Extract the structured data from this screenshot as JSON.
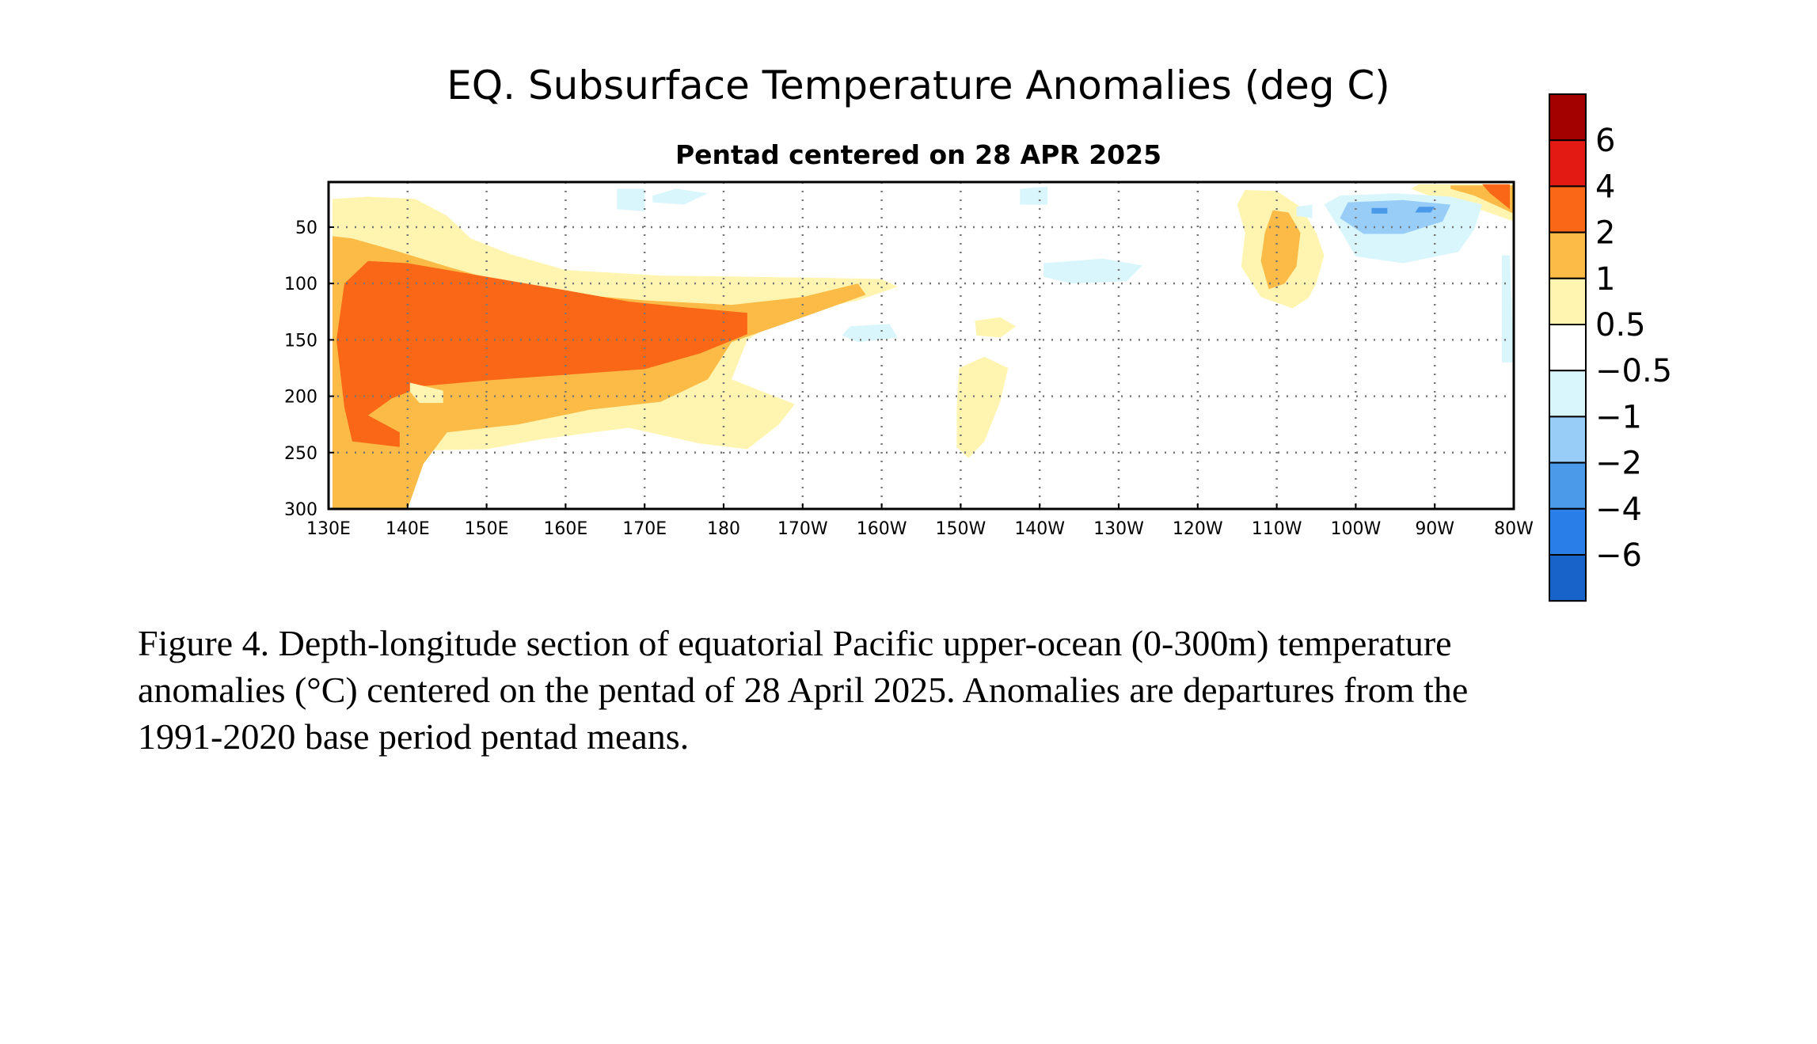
{
  "colors": {
    "levels": [
      "#1863c9",
      "#2a7ee8",
      "#4a9ae9",
      "#98cdf7",
      "#d8f6fb",
      "#ffffff",
      "#fff5b0",
      "#fcbb46",
      "#fa6716",
      "#e31a14",
      "#a30000"
    ]
  },
  "chart_data": {
    "type": "heatmap",
    "title": "EQ. Subsurface Temperature Anomalies (deg C)",
    "subtitle": "Pentad centered on 28 APR 2025",
    "xlabel": "",
    "ylabel": "",
    "xlim": [
      130,
      280
    ],
    "ylim": [
      300,
      10
    ],
    "x_ticks": [
      {
        "value": 130,
        "label": "130E"
      },
      {
        "value": 140,
        "label": "140E"
      },
      {
        "value": 150,
        "label": "150E"
      },
      {
        "value": 160,
        "label": "160E"
      },
      {
        "value": 170,
        "label": "170E"
      },
      {
        "value": 180,
        "label": "180"
      },
      {
        "value": 190,
        "label": "170W"
      },
      {
        "value": 200,
        "label": "160W"
      },
      {
        "value": 210,
        "label": "150W"
      },
      {
        "value": 220,
        "label": "140W"
      },
      {
        "value": 230,
        "label": "130W"
      },
      {
        "value": 240,
        "label": "120W"
      },
      {
        "value": 250,
        "label": "110W"
      },
      {
        "value": 260,
        "label": "100W"
      },
      {
        "value": 270,
        "label": "90W"
      },
      {
        "value": 280,
        "label": "80W"
      }
    ],
    "y_ticks": [
      {
        "value": 50,
        "label": "50"
      },
      {
        "value": 100,
        "label": "100"
      },
      {
        "value": 150,
        "label": "150"
      },
      {
        "value": 200,
        "label": "200"
      },
      {
        "value": 250,
        "label": "250"
      },
      {
        "value": 300,
        "label": "300"
      }
    ],
    "grid": true,
    "colorbar": {
      "labels": [
        "6",
        "4",
        "2",
        "1",
        "0.5",
        "−0.5",
        "−1",
        "−2",
        "−4",
        "−6"
      ],
      "levels": [
        -6,
        -4,
        -2,
        -1,
        -0.5,
        0.5,
        1,
        2,
        4,
        6
      ]
    },
    "anomaly_regions": [
      {
        "level": 0.5,
        "points": [
          [
            130.5,
            25
          ],
          [
            135,
            23
          ],
          [
            141,
            25
          ],
          [
            145,
            40
          ],
          [
            148,
            60
          ],
          [
            153,
            74
          ],
          [
            160,
            88
          ],
          [
            172,
            93
          ],
          [
            183,
            94
          ],
          [
            193,
            95
          ],
          [
            200,
            96
          ],
          [
            202,
            103
          ],
          [
            197,
            115
          ],
          [
            188,
            128
          ],
          [
            183,
            150
          ],
          [
            181,
            185
          ],
          [
            189,
            207
          ],
          [
            187,
            225
          ],
          [
            183,
            247
          ],
          [
            177,
            242
          ],
          [
            168,
            228
          ],
          [
            157,
            238
          ],
          [
            150,
            247
          ],
          [
            143,
            248
          ],
          [
            139,
            262
          ],
          [
            137,
            300
          ],
          [
            130.5,
            300
          ]
        ]
      },
      {
        "level": 1,
        "points": [
          [
            130.5,
            58
          ],
          [
            133,
            60
          ],
          [
            139,
            72
          ],
          [
            145,
            85
          ],
          [
            152,
            99
          ],
          [
            160,
            109
          ],
          [
            170,
            115
          ],
          [
            181,
            119
          ],
          [
            190,
            112
          ],
          [
            197,
            100
          ],
          [
            198,
            110
          ],
          [
            190,
            130
          ],
          [
            181,
            152
          ],
          [
            178,
            185
          ],
          [
            172,
            205
          ],
          [
            163,
            212
          ],
          [
            154,
            225
          ],
          [
            145,
            232
          ],
          [
            142,
            260
          ],
          [
            140,
            300
          ],
          [
            130.5,
            300
          ]
        ]
      },
      {
        "level": 2,
        "points": [
          [
            132,
            100
          ],
          [
            135,
            80
          ],
          [
            140,
            82
          ],
          [
            150,
            94
          ],
          [
            160,
            106
          ],
          [
            168,
            116
          ],
          [
            175,
            121
          ],
          [
            183,
            126
          ],
          [
            183,
            145
          ],
          [
            177,
            162
          ],
          [
            170,
            176
          ],
          [
            162,
            180
          ],
          [
            150,
            186
          ],
          [
            142,
            191
          ],
          [
            138,
            202
          ],
          [
            135,
            217
          ],
          [
            139,
            232
          ],
          [
            139,
            245
          ],
          [
            133,
            240
          ],
          [
            132,
            210
          ],
          [
            131,
            150
          ]
        ]
      },
      {
        "level": 0.5,
        "points": [
          [
            140.3,
            188
          ],
          [
            144.5,
            195
          ],
          [
            144.5,
            206
          ],
          [
            141.5,
            206
          ],
          [
            140.3,
            196
          ]
        ]
      },
      {
        "level": 0.5,
        "points": [
          [
            209.8,
            175
          ],
          [
            213,
            165
          ],
          [
            216,
            175
          ],
          [
            215,
            205
          ],
          [
            213,
            240
          ],
          [
            211,
            255
          ],
          [
            209.5,
            245
          ],
          [
            209.5,
            210
          ]
        ]
      },
      {
        "level": 0.5,
        "points": [
          [
            211.8,
            133
          ],
          [
            215,
            130
          ],
          [
            217,
            138
          ],
          [
            215,
            148
          ],
          [
            212,
            146
          ]
        ]
      },
      {
        "level": 0.5,
        "points": [
          [
            246,
            17
          ],
          [
            250,
            18
          ],
          [
            253,
            32
          ],
          [
            255,
            55
          ],
          [
            256,
            75
          ],
          [
            255,
            100
          ],
          [
            254,
            113
          ],
          [
            252,
            122
          ],
          [
            248,
            112
          ],
          [
            245.5,
            85
          ],
          [
            246,
            55
          ],
          [
            245,
            30
          ]
        ]
      },
      {
        "level": 1,
        "points": [
          [
            249.5,
            35
          ],
          [
            251.5,
            37
          ],
          [
            253,
            55
          ],
          [
            252.5,
            85
          ],
          [
            251,
            100
          ],
          [
            249,
            105
          ],
          [
            248,
            80
          ],
          [
            248.5,
            55
          ]
        ]
      },
      {
        "level": 0.5,
        "points": [
          [
            268,
            12
          ],
          [
            280,
            12
          ],
          [
            280,
            45
          ],
          [
            276,
            35
          ],
          [
            270,
            24
          ],
          [
            267,
            16
          ]
        ]
      },
      {
        "level": 1,
        "points": [
          [
            272,
            13
          ],
          [
            280,
            13
          ],
          [
            280,
            38
          ],
          [
            275,
            22
          ],
          [
            272,
            16
          ]
        ]
      },
      {
        "level": 2,
        "points": [
          [
            276,
            12
          ],
          [
            279.5,
            12
          ],
          [
            279.5,
            34
          ],
          [
            277,
            20
          ]
        ]
      },
      {
        "level": -0.5,
        "points": [
          [
            258,
            22
          ],
          [
            265,
            20
          ],
          [
            272,
            23
          ],
          [
            276,
            30
          ],
          [
            275,
            52
          ],
          [
            273,
            72
          ],
          [
            266,
            82
          ],
          [
            260,
            76
          ],
          [
            258,
            52
          ],
          [
            256,
            30
          ]
        ]
      },
      {
        "level": -1,
        "points": [
          [
            259,
            28
          ],
          [
            266,
            26
          ],
          [
            272,
            30
          ],
          [
            271,
            45
          ],
          [
            266,
            56
          ],
          [
            261,
            56
          ],
          [
            258,
            42
          ]
        ]
      },
      {
        "level": -2,
        "points": [
          [
            262,
            33
          ],
          [
            264,
            33
          ],
          [
            264,
            38
          ],
          [
            262,
            38
          ]
        ]
      },
      {
        "level": -2,
        "points": [
          [
            268,
            32
          ],
          [
            270,
            32
          ],
          [
            269.5,
            37
          ],
          [
            267.5,
            37
          ]
        ]
      },
      {
        "level": -0.5,
        "points": [
          [
            220.5,
            82
          ],
          [
            228,
            78
          ],
          [
            233,
            84
          ],
          [
            231,
            98
          ],
          [
            224,
            100
          ],
          [
            220.5,
            94
          ]
        ]
      },
      {
        "level": -0.5,
        "points": [
          [
            196,
            138
          ],
          [
            201,
            136
          ],
          [
            202,
            148
          ],
          [
            197,
            152
          ],
          [
            195,
            146
          ]
        ]
      },
      {
        "level": -0.5,
        "points": [
          [
            217.5,
            16
          ],
          [
            221,
            14
          ],
          [
            221,
            30
          ],
          [
            217.5,
            30
          ]
        ]
      },
      {
        "level": -0.5,
        "points": [
          [
            166.5,
            16
          ],
          [
            170,
            16
          ],
          [
            170,
            36
          ],
          [
            166.5,
            34
          ]
        ]
      },
      {
        "level": -0.5,
        "points": [
          [
            171,
            22
          ],
          [
            174,
            16
          ],
          [
            178,
            20
          ],
          [
            175,
            30
          ],
          [
            171,
            28
          ]
        ]
      },
      {
        "level": -0.5,
        "points": [
          [
            252.5,
            32
          ],
          [
            254.5,
            30
          ],
          [
            254.5,
            42
          ],
          [
            252.5,
            40
          ]
        ]
      },
      {
        "level": -0.5,
        "points": [
          [
            278.5,
            75
          ],
          [
            279.5,
            75
          ],
          [
            280,
            170
          ],
          [
            278.5,
            170
          ]
        ]
      }
    ]
  },
  "caption": {
    "lines": [
      "Figure 4. Depth-longitude section of equatorial Pacific upper-ocean (0-300m) temperature",
      "anomalies (°C) centered on the pentad of 28 April 2025. Anomalies are departures from the",
      "1991-2020 base period pentad means."
    ]
  }
}
